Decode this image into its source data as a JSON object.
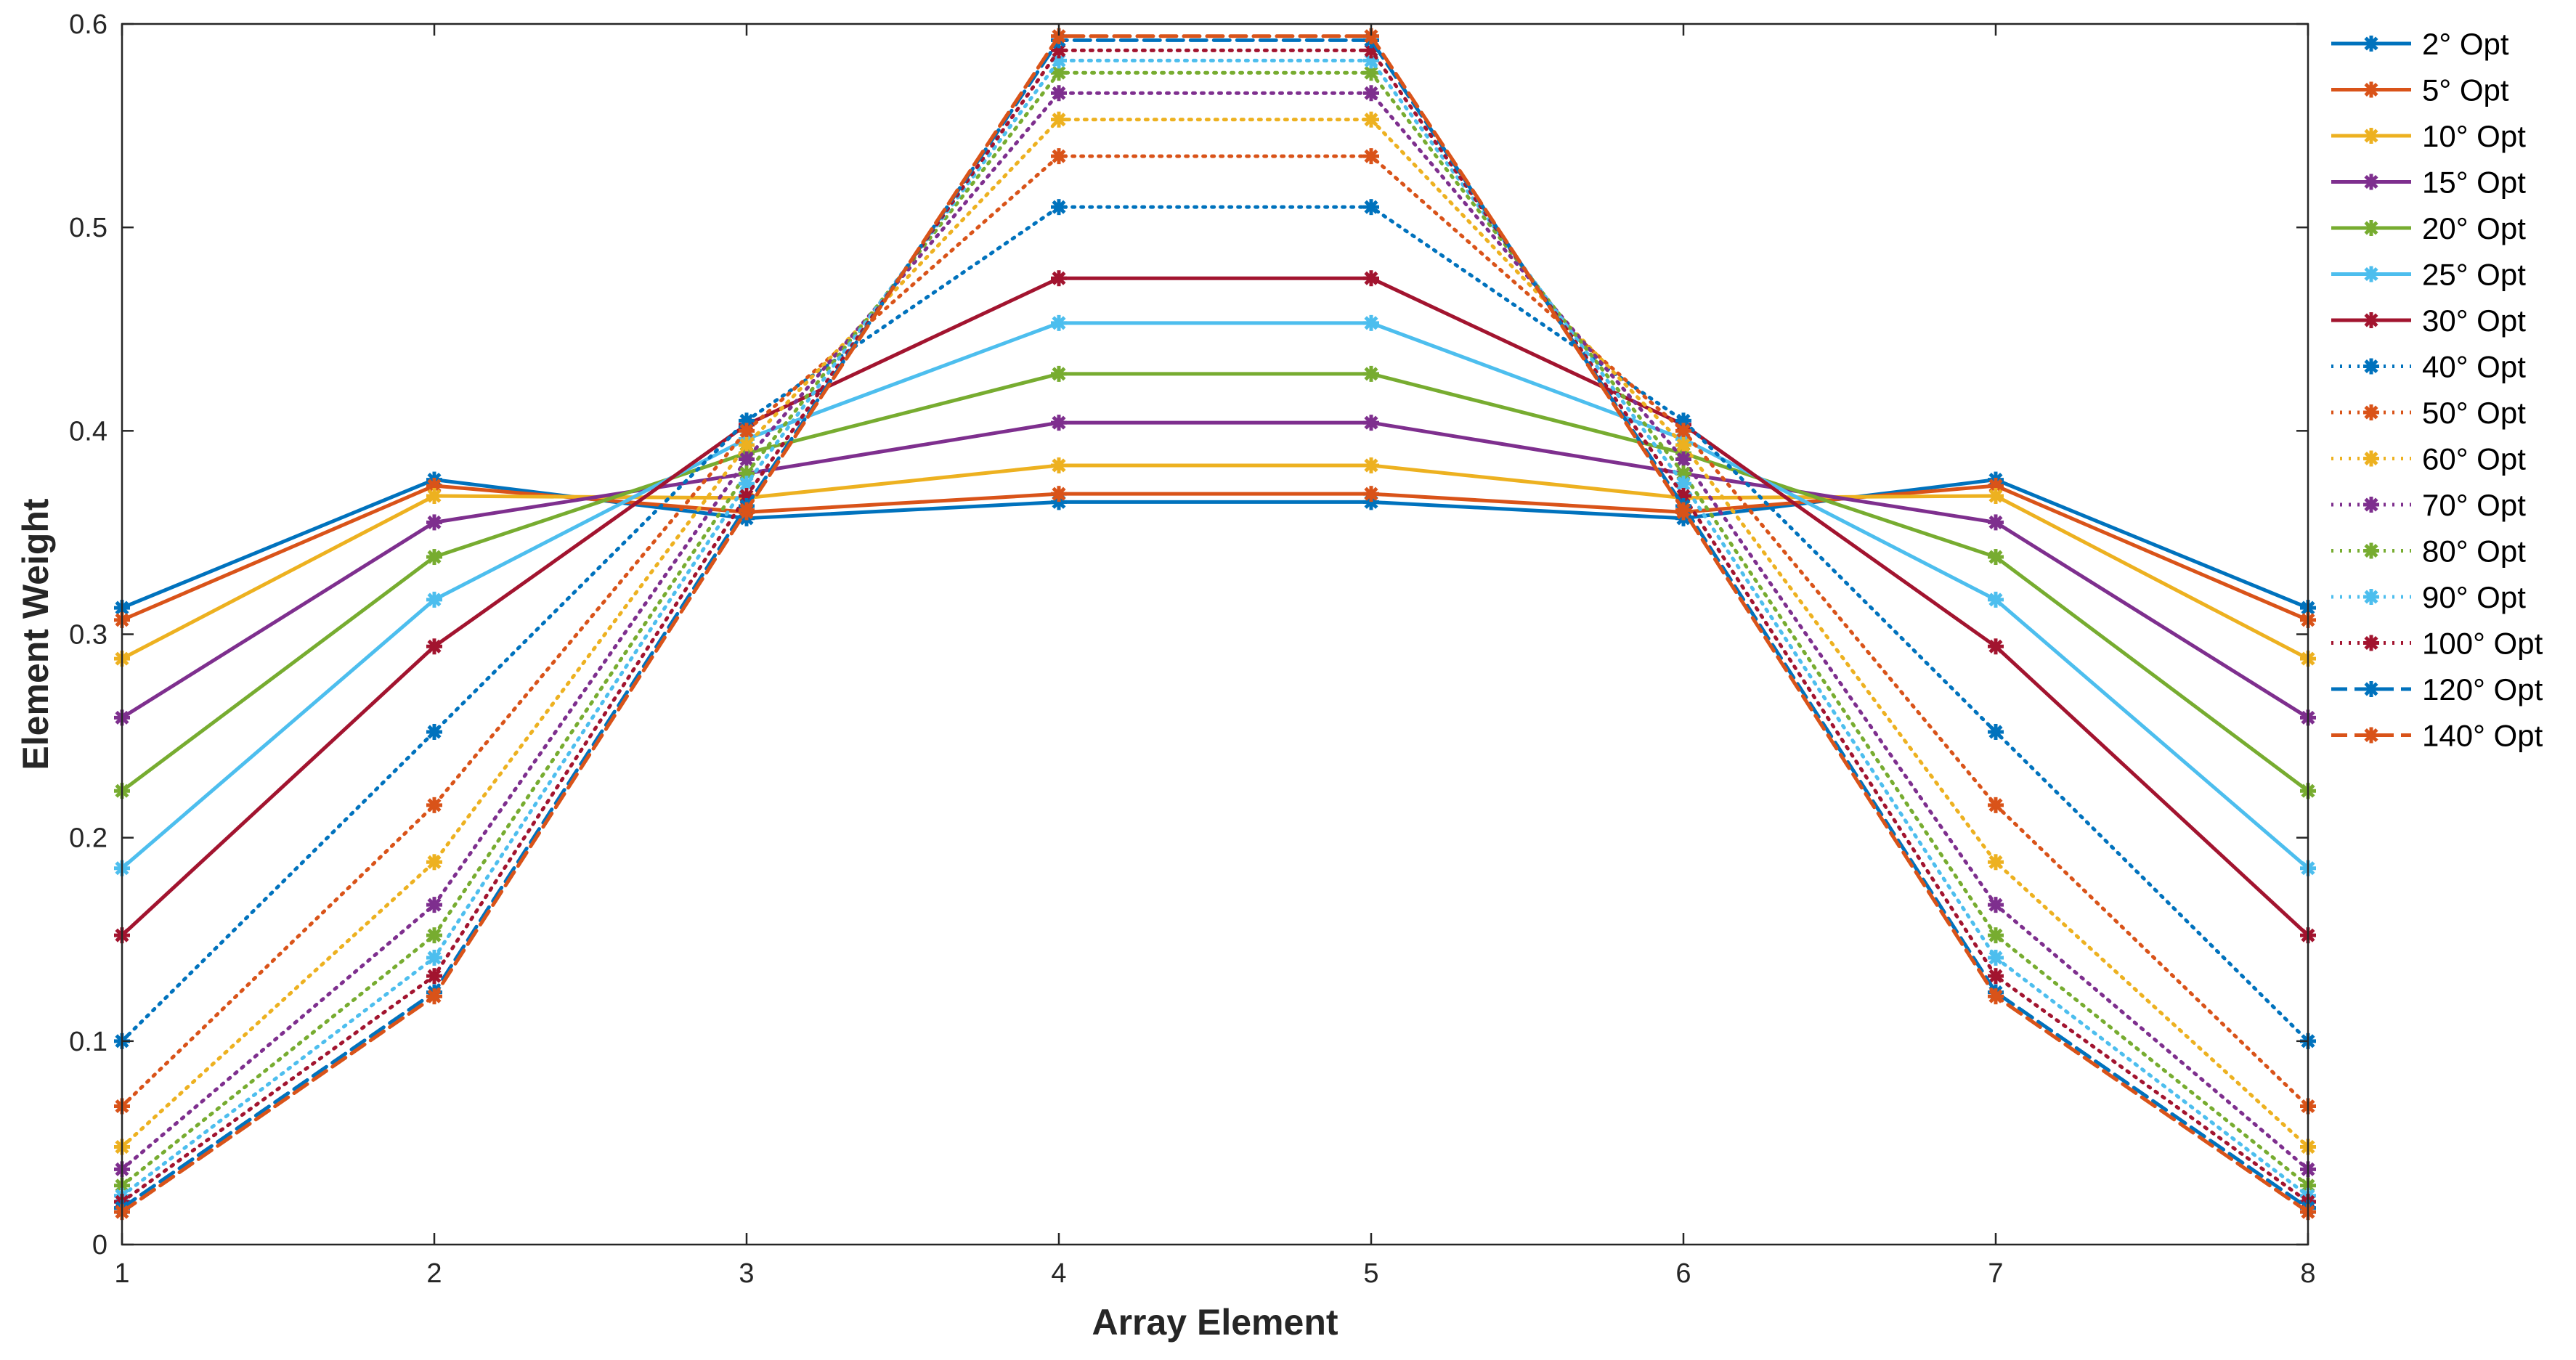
{
  "chart_data": {
    "type": "line",
    "title": "",
    "xlabel": "Array Element",
    "ylabel": "Element Weight",
    "x": [
      1,
      2,
      3,
      4,
      5,
      6,
      7,
      8
    ],
    "xlim": [
      1,
      8
    ],
    "ylim": [
      0,
      0.6
    ],
    "xticks": [
      "1",
      "2",
      "3",
      "4",
      "5",
      "6",
      "7",
      "8"
    ],
    "yticks": [
      "0",
      "0.1",
      "0.2",
      "0.3",
      "0.4",
      "0.5",
      "0.6"
    ],
    "grid": false,
    "legend_position": "outside-right-top",
    "series": [
      {
        "name": "2° Opt",
        "color": "#0072BD",
        "style": "solid",
        "values": [
          0.313,
          0.376,
          0.357,
          0.365,
          0.365,
          0.357,
          0.376,
          0.313
        ]
      },
      {
        "name": "5° Opt",
        "color": "#D95319",
        "style": "solid",
        "values": [
          0.307,
          0.373,
          0.36,
          0.369,
          0.369,
          0.36,
          0.373,
          0.307
        ]
      },
      {
        "name": "10° Opt",
        "color": "#EDB120",
        "style": "solid",
        "values": [
          0.288,
          0.368,
          0.367,
          0.383,
          0.383,
          0.367,
          0.368,
          0.288
        ]
      },
      {
        "name": "15° Opt",
        "color": "#7E2F8E",
        "style": "solid",
        "values": [
          0.259,
          0.355,
          0.379,
          0.404,
          0.404,
          0.379,
          0.355,
          0.259
        ]
      },
      {
        "name": "20° Opt",
        "color": "#77AC30",
        "style": "solid",
        "values": [
          0.223,
          0.338,
          0.389,
          0.428,
          0.428,
          0.389,
          0.338,
          0.223
        ]
      },
      {
        "name": "25° Opt",
        "color": "#4DBEEE",
        "style": "solid",
        "values": [
          0.185,
          0.317,
          0.396,
          0.453,
          0.453,
          0.396,
          0.317,
          0.185
        ]
      },
      {
        "name": "30° Opt",
        "color": "#A2142F",
        "style": "solid",
        "values": [
          0.152,
          0.294,
          0.403,
          0.475,
          0.475,
          0.403,
          0.294,
          0.152
        ]
      },
      {
        "name": "40° Opt",
        "color": "#0072BD",
        "style": "dotted",
        "values": [
          0.1,
          0.252,
          0.405,
          0.51,
          0.51,
          0.405,
          0.252,
          0.1
        ]
      },
      {
        "name": "50° Opt",
        "color": "#D95319",
        "style": "dotted",
        "values": [
          0.068,
          0.216,
          0.4,
          0.535,
          0.535,
          0.4,
          0.216,
          0.068
        ]
      },
      {
        "name": "60° Opt",
        "color": "#EDB120",
        "style": "dotted",
        "values": [
          0.048,
          0.188,
          0.393,
          0.553,
          0.553,
          0.393,
          0.188,
          0.048
        ]
      },
      {
        "name": "70° Opt",
        "color": "#7E2F8E",
        "style": "dotted",
        "values": [
          0.037,
          0.167,
          0.386,
          0.566,
          0.566,
          0.386,
          0.167,
          0.037
        ]
      },
      {
        "name": "80° Opt",
        "color": "#77AC30",
        "style": "dotted",
        "values": [
          0.029,
          0.152,
          0.379,
          0.576,
          0.576,
          0.379,
          0.152,
          0.029
        ]
      },
      {
        "name": "90° Opt",
        "color": "#4DBEEE",
        "style": "dotted",
        "values": [
          0.024,
          0.141,
          0.374,
          0.582,
          0.582,
          0.374,
          0.141,
          0.024
        ]
      },
      {
        "name": "100° Opt",
        "color": "#A2142F",
        "style": "dotted",
        "values": [
          0.021,
          0.132,
          0.368,
          0.587,
          0.587,
          0.368,
          0.132,
          0.021
        ]
      },
      {
        "name": "120° Opt",
        "color": "#0072BD",
        "style": "dashed",
        "values": [
          0.018,
          0.124,
          0.363,
          0.592,
          0.592,
          0.363,
          0.124,
          0.018
        ]
      },
      {
        "name": "140° Opt",
        "color": "#D95319",
        "style": "dashed",
        "values": [
          0.016,
          0.122,
          0.361,
          0.594,
          0.594,
          0.361,
          0.122,
          0.016
        ]
      }
    ]
  }
}
